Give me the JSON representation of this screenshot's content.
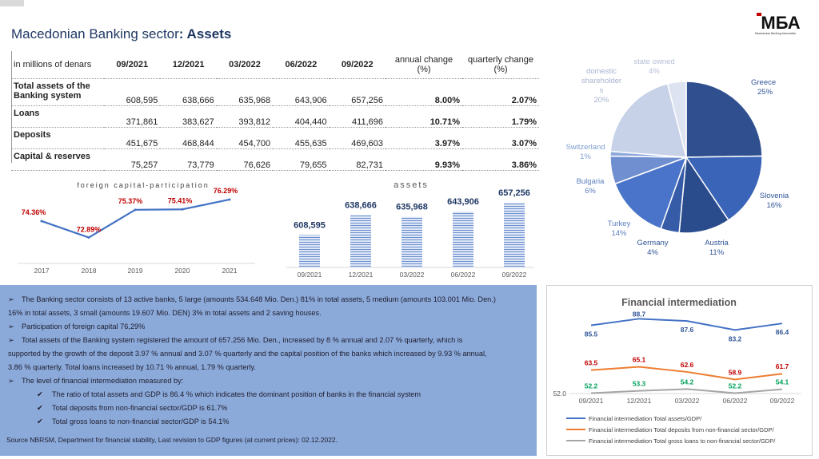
{
  "header": {
    "title_prefix": "Macedonian Banking sector",
    "title_suffix": ": Assets",
    "logo_text": "МБА",
    "logo_caption": "Macedonian Banking Association"
  },
  "table": {
    "corner": "in millions of denars",
    "columns": [
      "09/2021",
      "12/2021",
      "03/2022",
      "06/2022",
      "09/2022"
    ],
    "annual_header": "annual change (%)",
    "quarterly_header": "quarterly change (%)",
    "rows": [
      {
        "label": "Total assets of the Banking system",
        "values": [
          "608,595",
          "638,666",
          "635,968",
          "643,906",
          "657,256"
        ],
        "annual": "8.00%",
        "quarterly": "2.07%"
      },
      {
        "label": "Loans",
        "values": [
          "371,861",
          "383,627",
          "393,812",
          "404,440",
          "411,696"
        ],
        "annual": "10.71%",
        "quarterly": "1.79%"
      },
      {
        "label": "Deposits",
        "values": [
          "451,675",
          "468,844",
          "454,700",
          "455,635",
          "469,603"
        ],
        "annual": "3.97%",
        "quarterly": "3.07%"
      },
      {
        "label": "Capital & reserves",
        "values": [
          "75,257",
          "73,779",
          "76,626",
          "79,655",
          "82,731"
        ],
        "annual": "9.93%",
        "quarterly": "3.86%"
      }
    ]
  },
  "chart_data": [
    {
      "type": "line",
      "title": "foreign capital-participation",
      "categories": [
        "2017",
        "2018",
        "2019",
        "2020",
        "2021"
      ],
      "values": [
        74.36,
        72.89,
        75.37,
        75.41,
        76.29
      ],
      "data_labels": [
        "74.36%",
        "72.89%",
        "75.37%",
        "75.41%",
        "76.29%"
      ],
      "line_color": "#4472c4",
      "label_color": "#c00000"
    },
    {
      "type": "bar",
      "title": "assets",
      "categories": [
        "09/2021",
        "12/2021",
        "03/2022",
        "06/2022",
        "09/2022"
      ],
      "values": [
        608595,
        638666,
        635968,
        643906,
        657256
      ],
      "data_labels": [
        "608,595",
        "638,666",
        "635,968",
        "643,906",
        "657,256"
      ],
      "bar_color": "#b4c7e7"
    },
    {
      "type": "pie",
      "slices": [
        {
          "label": "Greece",
          "pct": "25%",
          "value": 25,
          "color": "#2f4f8f",
          "label_color": "#2f5597"
        },
        {
          "label": "Slovenia",
          "pct": "16%",
          "value": 16,
          "color": "#3a64b8",
          "label_color": "#2f5597"
        },
        {
          "label": "Austria",
          "pct": "11%",
          "value": 11,
          "color": "#2b4c8c",
          "label_color": "#2f5597"
        },
        {
          "label": "Germany",
          "pct": "4%",
          "value": 4,
          "color": "#365ca8",
          "label_color": "#2f5597"
        },
        {
          "label": "Turkey",
          "pct": "14%",
          "value": 14,
          "color": "#4a74c9",
          "label_color": "#5b7fbf"
        },
        {
          "label": "Bulgaria",
          "pct": "6%",
          "value": 6,
          "color": "#6f8fd0",
          "label_color": "#5b7fbf"
        },
        {
          "label": "Switzerland",
          "pct": "1%",
          "value": 1,
          "color": "#8fa8dc",
          "label_color": "#7f9fd0"
        },
        {
          "label": "domestic shareholders",
          "pct": "20%",
          "value": 20,
          "color": "#c7d1e8",
          "label_color": "#a6b3cf"
        },
        {
          "label": "state owned",
          "pct": "4%",
          "value": 4,
          "color": "#dde3f0",
          "label_color": "#b4bfd6"
        }
      ]
    },
    {
      "type": "line",
      "title": "Financial intermediation",
      "categories": [
        "09/2021",
        "12/2021",
        "03/2022",
        "06/2022",
        "09/2022"
      ],
      "y_axis_min_label": "52.0",
      "series": [
        {
          "name": "Financial intermediation Total assets/GDP/",
          "values": [
            85.5,
            88.7,
            87.6,
            83.2,
            86.4
          ],
          "color": "#4472c4"
        },
        {
          "name": "Financial intermediation Total deposits from non-financial sector/GDP/",
          "values": [
            63.5,
            65.1,
            62.6,
            58.9,
            61.7
          ],
          "color": "#ed7d31",
          "label_color": "#c00000"
        },
        {
          "name": "Financial intermediation Total gross loans to non-financial sector/GDP/",
          "values": [
            52.2,
            53.3,
            54.2,
            52.2,
            54.1
          ],
          "color": "#a5a5a5",
          "label_color": "#00a05a"
        }
      ]
    }
  ],
  "summary": {
    "bullets": [
      "The Banking sector consists of 13 active banks, 5 large (amounts 534.648 Mio. Den.) 81% in total assets, 5 medium (amounts 103.001 Mio. Den.)",
      "16% in total assets, 3 small (amounts 19.607 Mio. DEN) 3% in total assets and 2 saving houses.",
      "Participation of foreign capital 76,29%",
      "Total assets of the Banking system registered the amount of 657.256 Mio. Den., increased by 8 % annual and 2.07 % quarterly, which is",
      "supported by the growth of the deposit 3.97 % annual and 3.07 % quarterly and the capital position of the banks which increased by 9.93 % annual,",
      "3.86 % quarterly. Total loans increased by 10.71 % annual, 1.79 % quarterly.",
      "The level of financial intermediation measured by:",
      "The ratio of total assets and GDP is 86.4 % which indicates the dominant position of banks in the financial system",
      "Total deposits from non-financial sector/GDP is 61.7%",
      "Total gross loans to non-financial sector/GDP is 54.1%"
    ],
    "source": "Source NBRSM, Department for financial stability, Last revision to GDP figures (at current prices): 02.12.2022."
  }
}
